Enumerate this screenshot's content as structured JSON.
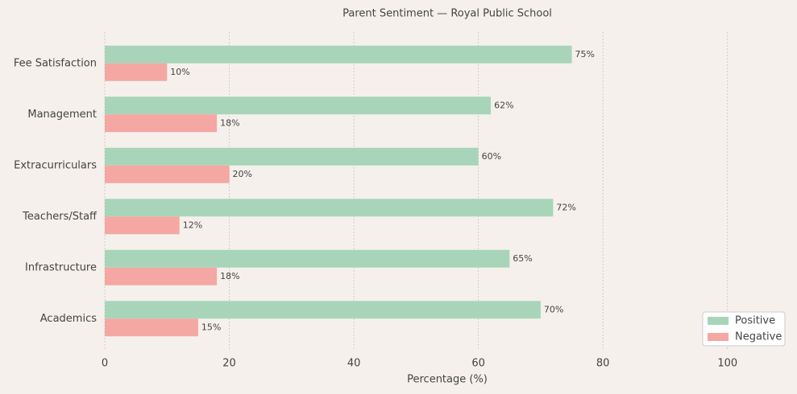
{
  "chart_data": {
    "type": "grouped-barh",
    "title": "Parent Sentiment — Royal Public School",
    "xlabel": "Percentage (%)",
    "categories": [
      "Fee Satisfaction",
      "Management",
      "Extracurriculars",
      "Teachers/Staff",
      "Infrastructure",
      "Academics"
    ],
    "series": [
      {
        "name": "Positive",
        "color": "#a8d5ba",
        "values": [
          75,
          62,
          60,
          72,
          65,
          70
        ],
        "value_labels": [
          "75%",
          "62%",
          "60%",
          "72%",
          "65%",
          "70%"
        ]
      },
      {
        "name": "Negative",
        "color": "#f4a7a3",
        "values": [
          10,
          18,
          20,
          12,
          18,
          15
        ],
        "value_labels": [
          "10%",
          "18%",
          "20%",
          "12%",
          "18%",
          "15%"
        ]
      }
    ],
    "xlim": [
      0,
      110
    ],
    "xticks": [
      0,
      20,
      40,
      60,
      80,
      100
    ],
    "grid": true,
    "legend": "lower right"
  }
}
